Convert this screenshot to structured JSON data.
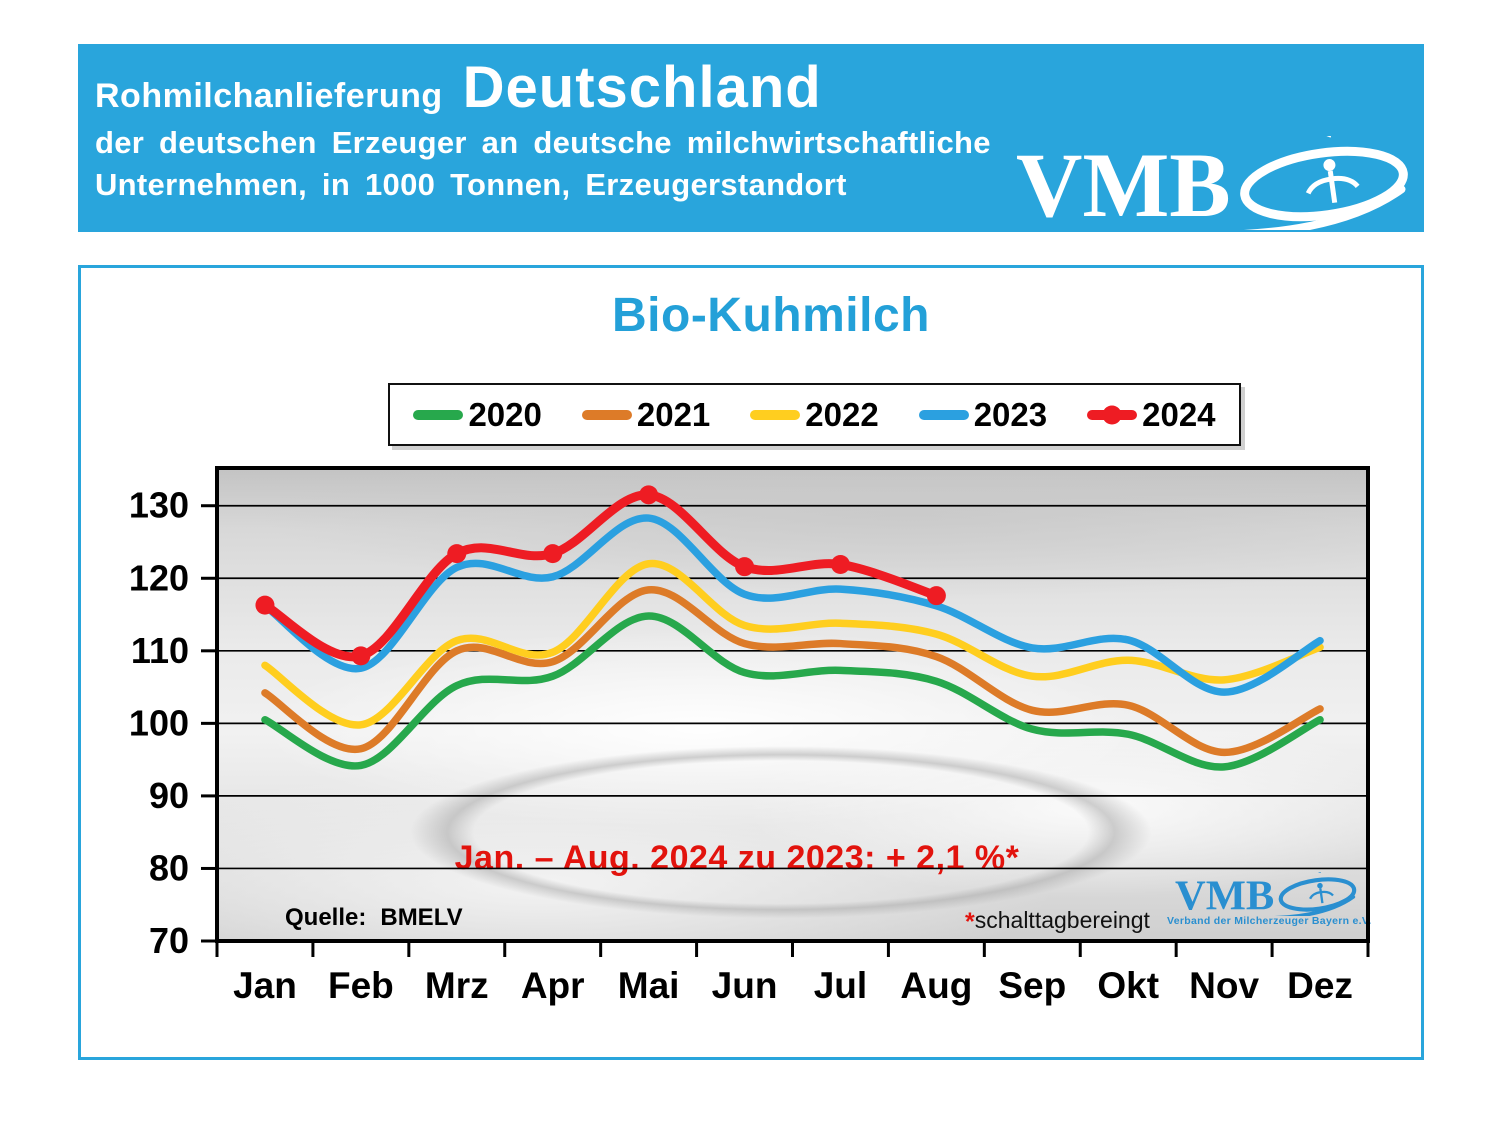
{
  "colors": {
    "header_blue": "#29a5dc",
    "title_blue": "#23a0d8",
    "annotation_red": "#e2130d",
    "logo_blue": "#2a8fd0"
  },
  "header": {
    "title_small": "Rohmilchanlieferung",
    "title_big": "Deutschland",
    "subtitle_line1": "der deutschen Erzeuger an deutsche milchwirtschaftliche",
    "subtitle_line2": "Unternehmen, in 1000 Tonnen, Erzeugerstandort",
    "logo_text": "VMB"
  },
  "panel": {
    "title": "Bio-Kuhmilch",
    "source_label": "Quelle:",
    "source_value": "BMELV",
    "annotation": "Jan. – Aug. 2024 zu 2023: + 2,1 %*",
    "footnote_star": "*",
    "footnote_text": "schalttagbereingt",
    "logo_text": "VMB",
    "logo_subtext": "Verband der Milcherzeuger Bayern e.V."
  },
  "chart_data": {
    "type": "line",
    "title": "Bio-Kuhmilch",
    "categories": [
      "Jan",
      "Feb",
      "Mrz",
      "Apr",
      "Mai",
      "Jun",
      "Jul",
      "Aug",
      "Sep",
      "Okt",
      "Nov",
      "Dez"
    ],
    "series": [
      {
        "name": "2020",
        "color": "#27a84c",
        "markers": false,
        "values": [
          100.5,
          94.2,
          105.2,
          106.5,
          114.8,
          107.0,
          107.3,
          105.8,
          99.2,
          98.5,
          94.0,
          100.5
        ]
      },
      {
        "name": "2021",
        "color": "#dd7b28",
        "markers": false,
        "values": [
          104.2,
          96.5,
          110.0,
          108.5,
          118.4,
          111.0,
          111.0,
          109.2,
          101.8,
          102.5,
          96.0,
          102.0
        ]
      },
      {
        "name": "2022",
        "color": "#ffce1f",
        "markers": false,
        "values": [
          108.0,
          99.8,
          111.4,
          109.8,
          122.0,
          113.5,
          113.8,
          112.3,
          106.5,
          108.7,
          106.0,
          110.5
        ]
      },
      {
        "name": "2023",
        "color": "#2ba0e0",
        "markers": false,
        "values": [
          116.2,
          107.6,
          121.5,
          120.2,
          128.3,
          117.8,
          118.5,
          116.2,
          110.4,
          111.5,
          104.3,
          111.4
        ]
      },
      {
        "name": "2024",
        "color": "#ee1c23",
        "markers": true,
        "values": [
          116.3,
          109.3,
          123.4,
          123.4,
          131.5,
          121.6,
          121.9,
          117.6,
          null,
          null,
          null,
          null
        ]
      }
    ],
    "ylabel": "",
    "xlabel": "",
    "ylim": [
      70,
      135.2
    ],
    "yticks": [
      70,
      80,
      90,
      100,
      110,
      120,
      130
    ],
    "grid": true,
    "legend_position": "top"
  }
}
